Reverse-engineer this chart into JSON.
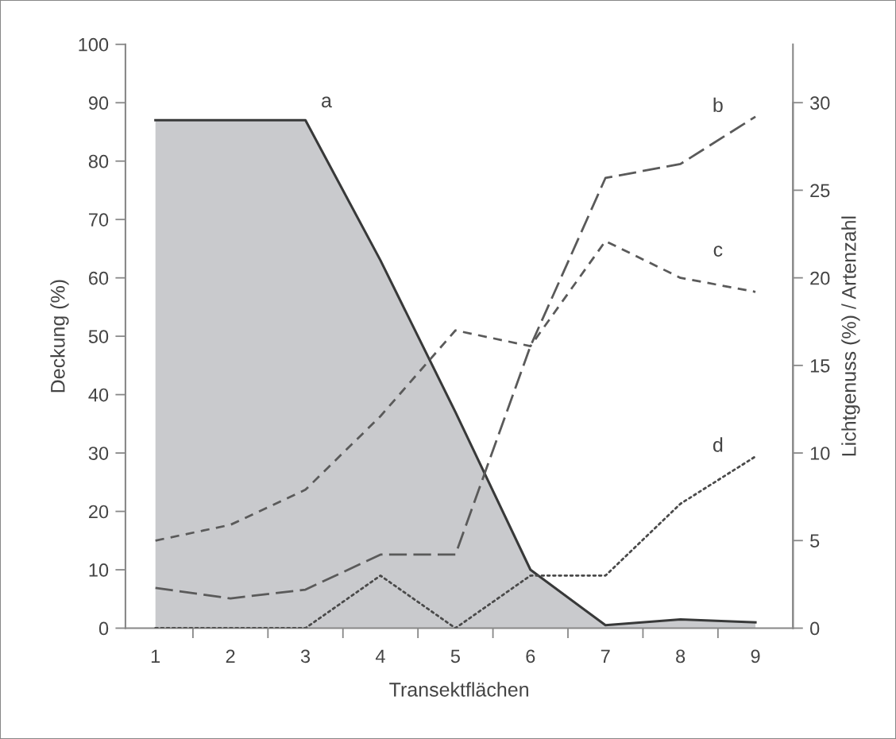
{
  "chart_data": {
    "type": "line",
    "xlabel": "Transektflächen",
    "ylabel": "Deckung (%)",
    "y2label": "Lichtgenuss (%) / Artenzahl",
    "x": [
      1,
      2,
      3,
      4,
      5,
      6,
      7,
      8,
      9
    ],
    "xlim": [
      0.6,
      9.5
    ],
    "xticks": [
      1,
      {
        "value": 1.5,
        "label": null
      },
      2,
      {
        "value": 2.5,
        "label": null
      },
      3,
      {
        "value": 3.5,
        "label": null
      },
      4,
      {
        "value": 4.5,
        "label": null
      },
      5,
      {
        "value": 5.5,
        "label": null
      },
      6,
      {
        "value": 6.5,
        "label": null
      },
      7,
      {
        "value": 7.5,
        "label": null
      },
      8,
      {
        "value": 8.5,
        "label": null
      },
      9
    ],
    "ylim": [
      0,
      100
    ],
    "yticks": [
      0,
      10,
      20,
      30,
      40,
      50,
      60,
      70,
      80,
      90,
      100
    ],
    "y2lim": [
      0,
      33.33
    ],
    "y2ticks": [
      0,
      5,
      10,
      15,
      20,
      25,
      30
    ],
    "series": [
      {
        "type": "area",
        "name": "a",
        "color": "#c9cacd",
        "line_style": "solid",
        "values": [
          87,
          87,
          87,
          63,
          37,
          10,
          0.5,
          1.5,
          1
        ]
      },
      {
        "name": "b",
        "axis": "y2",
        "color": "#5a5a5a",
        "line_style": "dashed",
        "values": [
          2.3,
          1.7,
          2.2,
          4.2,
          4.2,
          16.1,
          25.7,
          26.5,
          29.2
        ]
      },
      {
        "name": "c",
        "axis": "y2",
        "color": "#5a5a5a",
        "line_style": "dashed",
        "values": [
          5,
          5.9,
          7.9,
          12.1,
          17,
          16.1,
          22.1,
          20,
          19.2
        ]
      },
      {
        "name": "d",
        "axis": "y2",
        "color": "#4a4a4a",
        "line_style": "dotted",
        "values": [
          0,
          0,
          0,
          3,
          0,
          3,
          3,
          7.1,
          9.8
        ]
      }
    ],
    "grid": false,
    "legend": false,
    "marker": "none"
  }
}
